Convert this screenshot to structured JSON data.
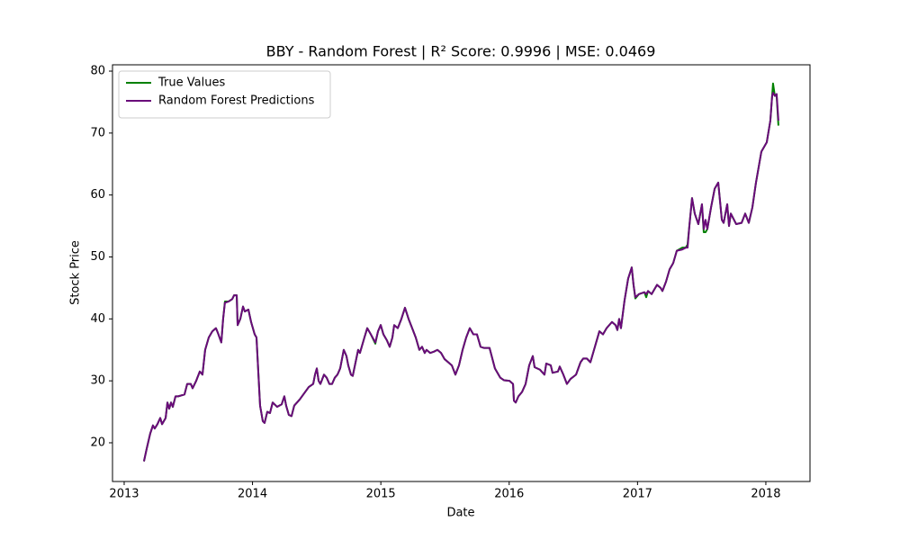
{
  "chart_data": {
    "type": "line",
    "title": "BBY - Random Forest | R² Score: 0.9996 | MSE: 0.0469",
    "x_label": "Date",
    "y_label": "Stock Price",
    "xlim": [
      2012.909,
      2018.344
    ],
    "xticks": [
      2013,
      2014,
      2015,
      2016,
      2017,
      2018
    ],
    "ylim": [
      13.75,
      81.02
    ],
    "yticks": [
      20,
      30,
      40,
      50,
      60,
      70,
      80
    ],
    "grid": false,
    "legend": "upper left",
    "x": [
      2013.154,
      2013.175,
      2013.203,
      2013.224,
      2013.238,
      2013.259,
      2013.281,
      2013.295,
      2013.323,
      2013.337,
      2013.351,
      2013.365,
      2013.379,
      2013.4,
      2013.421,
      2013.47,
      2013.491,
      2013.519,
      2013.533,
      2013.561,
      2013.589,
      2013.61,
      2013.631,
      2013.659,
      2013.687,
      2013.715,
      2013.729,
      2013.757,
      2013.771,
      2013.785,
      2013.813,
      2013.842,
      2013.856,
      2013.877,
      2013.884,
      2013.905,
      2013.926,
      2013.94,
      2013.968,
      2013.989,
      2014.017,
      2014.031,
      2014.059,
      2014.08,
      2014.094,
      2014.115,
      2014.136,
      2014.157,
      2014.192,
      2014.227,
      2014.248,
      2014.262,
      2014.283,
      2014.304,
      2014.325,
      2014.368,
      2014.403,
      2014.438,
      2014.473,
      2014.487,
      2014.501,
      2014.515,
      2014.529,
      2014.557,
      2014.578,
      2014.599,
      2014.62,
      2014.641,
      2014.662,
      2014.683,
      2014.711,
      2014.732,
      2014.746,
      2014.767,
      2014.781,
      2014.823,
      2014.837,
      2014.872,
      2014.894,
      2014.922,
      2014.957,
      2014.978,
      2014.999,
      2015.02,
      2015.048,
      2015.069,
      2015.09,
      2015.104,
      2015.132,
      2015.16,
      2015.188,
      2015.216,
      2015.244,
      2015.272,
      2015.3,
      2015.321,
      2015.342,
      2015.356,
      2015.384,
      2015.412,
      2015.441,
      2015.469,
      2015.497,
      2015.525,
      2015.553,
      2015.581,
      2015.609,
      2015.637,
      2015.665,
      2015.693,
      2015.721,
      2015.749,
      2015.777,
      2015.805,
      2015.847,
      2015.889,
      2015.931,
      2015.959,
      2016.002,
      2016.03,
      2016.037,
      2016.051,
      2016.072,
      2016.1,
      2016.128,
      2016.156,
      2016.184,
      2016.198,
      2016.24,
      2016.275,
      2016.289,
      2016.324,
      2016.338,
      2016.38,
      2016.394,
      2016.422,
      2016.45,
      2016.478,
      2016.521,
      2016.556,
      2016.577,
      2016.605,
      2016.633,
      2016.661,
      2016.703,
      2016.731,
      2016.759,
      2016.801,
      2016.829,
      2016.843,
      2016.857,
      2016.871,
      2016.899,
      2016.927,
      2016.955,
      2016.969,
      2016.983,
      2017.011,
      2017.054,
      2017.068,
      2017.082,
      2017.11,
      2017.152,
      2017.18,
      2017.194,
      2017.222,
      2017.25,
      2017.278,
      2017.306,
      2017.348,
      2017.376,
      2017.39,
      2017.404,
      2017.425,
      2017.446,
      2017.474,
      2017.502,
      2017.516,
      2017.53,
      2017.544,
      2017.573,
      2017.601,
      2017.629,
      2017.657,
      2017.671,
      2017.699,
      2017.713,
      2017.727,
      2017.769,
      2017.811,
      2017.839,
      2017.867,
      2017.895,
      2017.923,
      2017.965,
      2018.007,
      2018.035,
      2018.049,
      2018.056,
      2018.07,
      2018.084,
      2018.098
    ],
    "series": [
      {
        "name": "True Values",
        "color": "#008000",
        "values": [
          17,
          19,
          21.5,
          22.8,
          22.3,
          23,
          24,
          23,
          24,
          26.5,
          25.5,
          26.5,
          25.8,
          27.5,
          27.5,
          27.8,
          29.5,
          29.5,
          28.8,
          30,
          31.5,
          31,
          35,
          37,
          38,
          38.5,
          37.8,
          36.2,
          40,
          42.8,
          42.8,
          43.2,
          43.8,
          43.8,
          39,
          40,
          42,
          41.2,
          41.5,
          39.5,
          37.5,
          37,
          26,
          23.5,
          23.2,
          25,
          24.8,
          26.5,
          25.8,
          26.2,
          27.5,
          26,
          24.5,
          24.3,
          26,
          27,
          28,
          29,
          29.5,
          31,
          32,
          30,
          29.5,
          31,
          30.5,
          29.5,
          29.5,
          30.5,
          31,
          32,
          35,
          34,
          32.5,
          31,
          30.8,
          35,
          34.5,
          37,
          38.5,
          37.5,
          36,
          38,
          39,
          37.5,
          36.5,
          35.5,
          37,
          39,
          38.5,
          40,
          41.8,
          40,
          38.5,
          37,
          35,
          35.5,
          34.5,
          35,
          34.5,
          34.7,
          35,
          34.5,
          33.5,
          33,
          32.5,
          31,
          32.5,
          35,
          37,
          38.5,
          37.5,
          37.5,
          35.5,
          35.3,
          35.3,
          32,
          30.5,
          30.1,
          30,
          29.5,
          26.8,
          26.5,
          27.5,
          28.2,
          29.5,
          32.5,
          34,
          32.2,
          31.8,
          31,
          32.8,
          32.5,
          31.3,
          31.5,
          32.3,
          31,
          29.5,
          30.3,
          31,
          33,
          33.6,
          33.6,
          33,
          35,
          38,
          37.5,
          38.5,
          39.5,
          39,
          38.2,
          40,
          38.5,
          43,
          46.5,
          48.3,
          45.5,
          43.3,
          44,
          44.3,
          43.5,
          44.5,
          44,
          45.5,
          45,
          44.5,
          46,
          48,
          49,
          51,
          51.5,
          51.5,
          52,
          55,
          59.5,
          57,
          55.3,
          58.5,
          54,
          54,
          54.5,
          58,
          61,
          62,
          56,
          55.5,
          58.5,
          55,
          57,
          55.3,
          55.5,
          57,
          55.5,
          58,
          62,
          67,
          68.5,
          72,
          76,
          78,
          76,
          76,
          71.2
        ]
      },
      {
        "name": "Random Forest Predictions",
        "color": "#6a0a7a",
        "values": [
          17,
          19,
          21.5,
          22.8,
          22.3,
          23,
          24,
          23,
          24,
          26.5,
          25.5,
          26.5,
          25.8,
          27.5,
          27.5,
          27.8,
          29.5,
          29.5,
          28.8,
          30,
          31.5,
          31,
          35,
          37,
          38,
          38.5,
          37.8,
          36.2,
          40,
          42.6,
          42.8,
          43.2,
          43.8,
          43.8,
          39,
          40,
          42,
          41.2,
          41.5,
          39.5,
          37.5,
          37,
          26,
          23.5,
          23.2,
          25,
          24.8,
          26.5,
          25.8,
          26.2,
          27.5,
          26,
          24.5,
          24.3,
          26,
          27,
          28,
          29,
          29.5,
          31,
          32,
          30,
          29.5,
          31,
          30.5,
          29.5,
          29.5,
          30.5,
          31,
          32,
          35,
          34,
          32.5,
          31,
          30.8,
          35,
          34.5,
          37,
          38.5,
          37.5,
          36.2,
          38,
          39,
          37.5,
          36.5,
          35.5,
          37,
          39,
          38.5,
          40,
          41.8,
          40,
          38.5,
          37,
          35,
          35.5,
          34.5,
          35,
          34.5,
          34.7,
          35,
          34.5,
          33.5,
          33,
          32.5,
          31,
          32.5,
          35,
          37,
          38.5,
          37.5,
          37.5,
          35.5,
          35.3,
          35.3,
          32,
          30.5,
          30.1,
          30,
          29.5,
          26.8,
          26.5,
          27.5,
          28.2,
          29.5,
          32.5,
          34,
          32.2,
          31.8,
          31,
          32.8,
          32.5,
          31.3,
          31.5,
          32.3,
          31,
          29.5,
          30.3,
          31,
          33,
          33.6,
          33.6,
          33,
          35,
          38,
          37.5,
          38.5,
          39.5,
          39,
          38.2,
          40,
          38.5,
          43,
          46.5,
          48.3,
          45.5,
          43.5,
          44,
          44.3,
          44,
          44.5,
          44,
          45.5,
          45,
          44.5,
          46,
          48,
          49,
          51,
          51.2,
          51.5,
          51.5,
          55,
          59.5,
          57,
          55.3,
          58.5,
          54.5,
          56,
          54.5,
          58,
          61,
          62,
          56,
          55.5,
          58.5,
          55,
          57,
          55.3,
          55.5,
          57,
          55.5,
          58,
          62,
          67,
          68.5,
          72,
          76,
          76.5,
          76,
          76.3,
          72
        ]
      }
    ]
  }
}
